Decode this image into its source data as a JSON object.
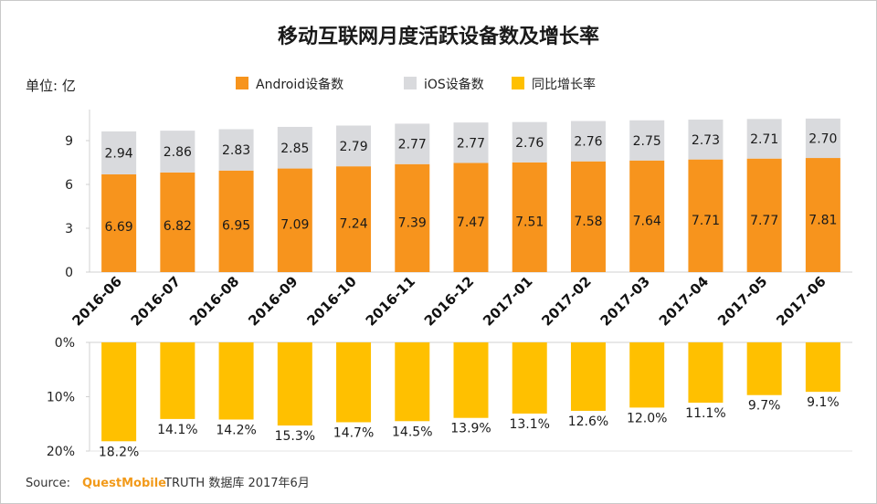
{
  "title": "移动互联网月度活跃设备数及增长率",
  "unit_label": "单位: 亿",
  "legend": [
    {
      "name": "Android设备数",
      "color": "#f7941d"
    },
    {
      "name": "iOS设备数",
      "color": "#d9dadd"
    },
    {
      "name": "同比增长率",
      "color": "#ffc000"
    }
  ],
  "source": {
    "prefix": "Source:",
    "brand": "QuestMobile",
    "suffix": "TRUTH 数据库 2017年6月"
  },
  "chart_data": [
    {
      "type": "bar",
      "stacked": true,
      "categories": [
        "2016-06",
        "2016-07",
        "2016-08",
        "2016-09",
        "2016-10",
        "2016-11",
        "2016-12",
        "2017-01",
        "2017-02",
        "2017-03",
        "2017-04",
        "2017-05",
        "2017-06"
      ],
      "series": [
        {
          "name": "Android设备数",
          "values": [
            6.69,
            6.82,
            6.95,
            7.09,
            7.24,
            7.39,
            7.47,
            7.51,
            7.58,
            7.64,
            7.71,
            7.77,
            7.81
          ],
          "labels": [
            "6.69",
            "6.82",
            "6.95",
            "7.09",
            "7.24",
            "7.39",
            "7.47",
            "7.51",
            "7.58",
            "7.64",
            "7.71",
            "7.77",
            "7.81"
          ]
        },
        {
          "name": "iOS设备数",
          "values": [
            2.94,
            2.86,
            2.83,
            2.85,
            2.79,
            2.77,
            2.77,
            2.76,
            2.76,
            2.75,
            2.73,
            2.71,
            2.7
          ],
          "labels": [
            "2.94",
            "2.86",
            "2.83",
            "2.85",
            "2.79",
            "2.77",
            "2.77",
            "2.76",
            "2.76",
            "2.75",
            "2.73",
            "2.71",
            "2.70"
          ]
        }
      ],
      "yticks": [
        "0",
        "3",
        "6",
        "9"
      ],
      "ytick_values": [
        0,
        3,
        6,
        9
      ],
      "ylim": [
        0,
        10.5
      ],
      "ylabel": "单位: 亿"
    },
    {
      "type": "bar",
      "orientation": "downward",
      "categories": [
        "2016-06",
        "2016-07",
        "2016-08",
        "2016-09",
        "2016-10",
        "2016-11",
        "2016-12",
        "2017-01",
        "2017-02",
        "2017-03",
        "2017-04",
        "2017-05",
        "2017-06"
      ],
      "series": [
        {
          "name": "同比增长率",
          "values": [
            18.2,
            14.1,
            14.2,
            15.3,
            14.7,
            14.5,
            13.9,
            13.1,
            12.6,
            12.0,
            11.1,
            9.7,
            9.1
          ],
          "labels": [
            "18.2%",
            "14.1%",
            "14.2%",
            "15.3%",
            "14.7%",
            "14.5%",
            "13.9%",
            "13.1%",
            "12.6%",
            "12.0%",
            "11.1%",
            "9.7%",
            "9.1%"
          ]
        }
      ],
      "yticks": [
        "0%",
        "10%",
        "20%"
      ],
      "ytick_values": [
        0,
        10,
        20
      ],
      "ylim": [
        0,
        20
      ]
    }
  ]
}
